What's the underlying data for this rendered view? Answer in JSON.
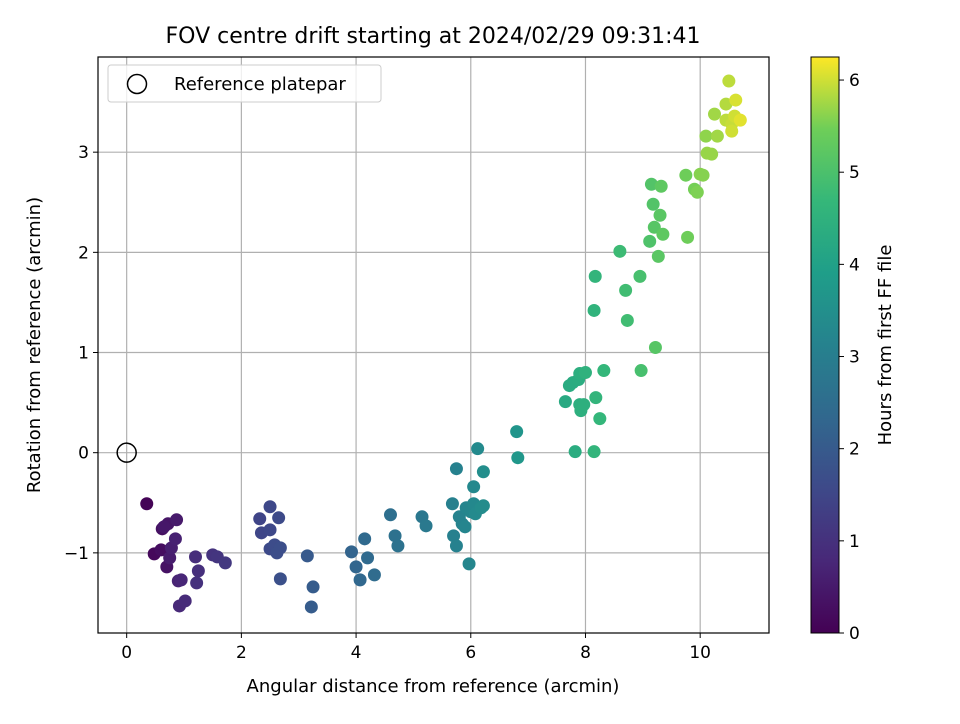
{
  "chart_data": {
    "type": "scatter",
    "title": "FOV centre drift starting at 2024/02/29 09:31:41",
    "xlabel": "Angular distance from reference (arcmin)",
    "ylabel": "Rotation from reference (arcmin)",
    "xlim": [
      -0.5,
      11.2
    ],
    "ylim": [
      -1.8,
      3.95
    ],
    "xticks": [
      0,
      2,
      4,
      6,
      8,
      10
    ],
    "yticks": [
      -1,
      0,
      1,
      2,
      3
    ],
    "xtick_labels": [
      "0",
      "2",
      "4",
      "6",
      "8",
      "10"
    ],
    "ytick_labels": [
      "−1",
      "0",
      "1",
      "2",
      "3"
    ],
    "grid": true,
    "legend": {
      "position": "top-left",
      "entries": [
        {
          "label": "Reference platepar",
          "marker": "open-circle"
        }
      ]
    },
    "reference_point": {
      "x": 0,
      "y": 0
    },
    "colorbar": {
      "label": "Hours from first FF file",
      "colormap": "viridis",
      "range": [
        0,
        6.25
      ],
      "ticks": [
        0,
        1,
        2,
        3,
        4,
        5,
        6
      ],
      "tick_labels": [
        "0",
        "1",
        "2",
        "3",
        "4",
        "5",
        "6"
      ]
    },
    "points": [
      {
        "x": 0.35,
        "y": -0.51,
        "h": 0.05
      },
      {
        "x": 0.48,
        "y": -1.01,
        "h": 0.15
      },
      {
        "x": 0.6,
        "y": -0.97,
        "h": 0.25
      },
      {
        "x": 0.62,
        "y": -0.76,
        "h": 0.3
      },
      {
        "x": 0.7,
        "y": -1.14,
        "h": 0.35
      },
      {
        "x": 0.72,
        "y": -0.71,
        "h": 0.4
      },
      {
        "x": 0.65,
        "y": -0.74,
        "h": 0.45
      },
      {
        "x": 0.87,
        "y": -0.67,
        "h": 0.5
      },
      {
        "x": 0.75,
        "y": -1.05,
        "h": 0.55
      },
      {
        "x": 0.78,
        "y": -0.95,
        "h": 0.6
      },
      {
        "x": 0.85,
        "y": -0.86,
        "h": 0.65
      },
      {
        "x": 0.9,
        "y": -1.28,
        "h": 0.7
      },
      {
        "x": 0.95,
        "y": -1.27,
        "h": 0.75
      },
      {
        "x": 0.92,
        "y": -1.53,
        "h": 0.8
      },
      {
        "x": 1.02,
        "y": -1.48,
        "h": 0.85
      },
      {
        "x": 1.2,
        "y": -1.04,
        "h": 0.9
      },
      {
        "x": 1.25,
        "y": -1.18,
        "h": 0.95
      },
      {
        "x": 1.22,
        "y": -1.3,
        "h": 1.0
      },
      {
        "x": 1.5,
        "y": -1.02,
        "h": 1.05
      },
      {
        "x": 1.58,
        "y": -1.04,
        "h": 1.1
      },
      {
        "x": 1.72,
        "y": -1.1,
        "h": 1.15
      },
      {
        "x": 2.32,
        "y": -0.66,
        "h": 1.45
      },
      {
        "x": 2.35,
        "y": -0.8,
        "h": 1.5
      },
      {
        "x": 2.5,
        "y": -0.77,
        "h": 1.55
      },
      {
        "x": 2.5,
        "y": -0.54,
        "h": 1.55
      },
      {
        "x": 2.65,
        "y": -0.65,
        "h": 1.6
      },
      {
        "x": 2.5,
        "y": -0.96,
        "h": 1.6
      },
      {
        "x": 2.58,
        "y": -0.92,
        "h": 1.65
      },
      {
        "x": 2.62,
        "y": -1.0,
        "h": 1.7
      },
      {
        "x": 2.68,
        "y": -0.95,
        "h": 1.7
      },
      {
        "x": 2.68,
        "y": -1.26,
        "h": 1.75
      },
      {
        "x": 3.15,
        "y": -1.03,
        "h": 2.0
      },
      {
        "x": 3.25,
        "y": -1.34,
        "h": 2.05
      },
      {
        "x": 3.22,
        "y": -1.54,
        "h": 2.05
      },
      {
        "x": 3.92,
        "y": -0.99,
        "h": 2.25
      },
      {
        "x": 4.0,
        "y": -1.14,
        "h": 2.3
      },
      {
        "x": 4.07,
        "y": -1.27,
        "h": 2.35
      },
      {
        "x": 4.15,
        "y": -0.86,
        "h": 2.4
      },
      {
        "x": 4.2,
        "y": -1.05,
        "h": 2.4
      },
      {
        "x": 4.32,
        "y": -1.22,
        "h": 2.45
      },
      {
        "x": 4.6,
        "y": -0.62,
        "h": 2.55
      },
      {
        "x": 4.68,
        "y": -0.83,
        "h": 2.6
      },
      {
        "x": 4.73,
        "y": -0.93,
        "h": 2.65
      },
      {
        "x": 5.15,
        "y": -0.64,
        "h": 2.8
      },
      {
        "x": 5.22,
        "y": -0.73,
        "h": 2.85
      },
      {
        "x": 5.68,
        "y": -0.51,
        "h": 3.05
      },
      {
        "x": 5.7,
        "y": -0.83,
        "h": 3.05
      },
      {
        "x": 5.75,
        "y": -0.16,
        "h": 3.1
      },
      {
        "x": 5.75,
        "y": -0.93,
        "h": 3.1
      },
      {
        "x": 5.8,
        "y": -0.64,
        "h": 3.15
      },
      {
        "x": 5.85,
        "y": -0.71,
        "h": 3.15
      },
      {
        "x": 5.9,
        "y": -0.74,
        "h": 3.2
      },
      {
        "x": 5.92,
        "y": -0.55,
        "h": 3.2
      },
      {
        "x": 5.97,
        "y": -1.11,
        "h": 3.25
      },
      {
        "x": 6.0,
        "y": -0.59,
        "h": 3.25
      },
      {
        "x": 6.05,
        "y": -0.51,
        "h": 3.3
      },
      {
        "x": 6.05,
        "y": -0.34,
        "h": 3.3
      },
      {
        "x": 6.08,
        "y": -0.61,
        "h": 3.35
      },
      {
        "x": 6.12,
        "y": 0.04,
        "h": 3.35
      },
      {
        "x": 6.18,
        "y": -0.55,
        "h": 3.4
      },
      {
        "x": 6.22,
        "y": -0.53,
        "h": 3.4
      },
      {
        "x": 6.22,
        "y": -0.19,
        "h": 3.45
      },
      {
        "x": 6.8,
        "y": 0.21,
        "h": 3.65
      },
      {
        "x": 6.82,
        "y": -0.05,
        "h": 3.7
      },
      {
        "x": 7.65,
        "y": 0.51,
        "h": 4.25
      },
      {
        "x": 7.72,
        "y": 0.67,
        "h": 4.3
      },
      {
        "x": 7.78,
        "y": 0.7,
        "h": 4.3
      },
      {
        "x": 7.82,
        "y": 0.01,
        "h": 4.35
      },
      {
        "x": 7.88,
        "y": 0.73,
        "h": 4.35
      },
      {
        "x": 7.9,
        "y": 0.79,
        "h": 4.4
      },
      {
        "x": 7.9,
        "y": 0.48,
        "h": 4.4
      },
      {
        "x": 7.92,
        "y": 0.42,
        "h": 4.45
      },
      {
        "x": 7.97,
        "y": 0.48,
        "h": 4.45
      },
      {
        "x": 8.0,
        "y": 0.8,
        "h": 4.5
      },
      {
        "x": 8.15,
        "y": 1.42,
        "h": 4.55
      },
      {
        "x": 8.17,
        "y": 1.76,
        "h": 4.6
      },
      {
        "x": 8.18,
        "y": 0.55,
        "h": 4.6
      },
      {
        "x": 8.15,
        "y": 0.01,
        "h": 4.6
      },
      {
        "x": 8.25,
        "y": 0.34,
        "h": 4.65
      },
      {
        "x": 8.32,
        "y": 0.82,
        "h": 4.65
      },
      {
        "x": 8.6,
        "y": 2.01,
        "h": 4.8
      },
      {
        "x": 8.7,
        "y": 1.62,
        "h": 4.85
      },
      {
        "x": 8.73,
        "y": 1.32,
        "h": 4.85
      },
      {
        "x": 8.95,
        "y": 1.76,
        "h": 4.95
      },
      {
        "x": 8.97,
        "y": 0.82,
        "h": 4.95
      },
      {
        "x": 9.12,
        "y": 2.11,
        "h": 5.05
      },
      {
        "x": 9.15,
        "y": 2.68,
        "h": 5.1
      },
      {
        "x": 9.18,
        "y": 2.48,
        "h": 5.1
      },
      {
        "x": 9.2,
        "y": 2.25,
        "h": 5.15
      },
      {
        "x": 9.22,
        "y": 1.05,
        "h": 5.15
      },
      {
        "x": 9.27,
        "y": 1.96,
        "h": 5.2
      },
      {
        "x": 9.3,
        "y": 2.37,
        "h": 5.2
      },
      {
        "x": 9.32,
        "y": 2.66,
        "h": 5.25
      },
      {
        "x": 9.35,
        "y": 2.18,
        "h": 5.25
      },
      {
        "x": 9.75,
        "y": 2.77,
        "h": 5.45
      },
      {
        "x": 9.78,
        "y": 2.15,
        "h": 5.45
      },
      {
        "x": 9.9,
        "y": 2.63,
        "h": 5.5
      },
      {
        "x": 9.95,
        "y": 2.6,
        "h": 5.55
      },
      {
        "x": 10.0,
        "y": 2.78,
        "h": 5.6
      },
      {
        "x": 10.05,
        "y": 2.77,
        "h": 5.6
      },
      {
        "x": 10.1,
        "y": 3.16,
        "h": 5.65
      },
      {
        "x": 10.12,
        "y": 2.99,
        "h": 5.7
      },
      {
        "x": 10.2,
        "y": 2.98,
        "h": 5.7
      },
      {
        "x": 10.25,
        "y": 3.38,
        "h": 5.75
      },
      {
        "x": 10.3,
        "y": 3.16,
        "h": 5.75
      },
      {
        "x": 10.45,
        "y": 3.48,
        "h": 5.85
      },
      {
        "x": 10.45,
        "y": 3.32,
        "h": 5.9
      },
      {
        "x": 10.5,
        "y": 3.71,
        "h": 5.9
      },
      {
        "x": 10.55,
        "y": 3.28,
        "h": 5.95
      },
      {
        "x": 10.55,
        "y": 3.21,
        "h": 6.0
      },
      {
        "x": 10.6,
        "y": 3.36,
        "h": 6.0
      },
      {
        "x": 10.62,
        "y": 3.52,
        "h": 6.05
      },
      {
        "x": 10.7,
        "y": 3.32,
        "h": 6.1
      }
    ]
  }
}
